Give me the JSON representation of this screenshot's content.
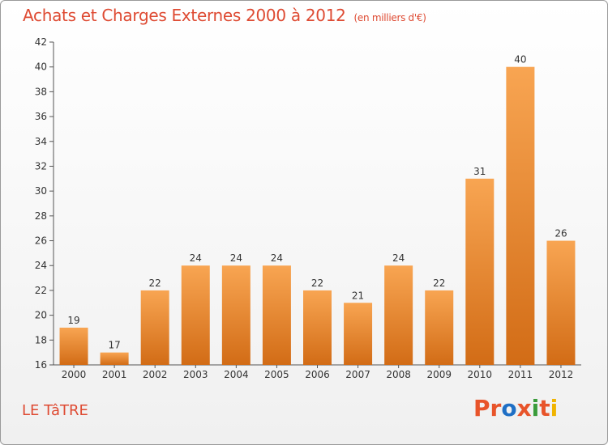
{
  "title": "Achats et Charges Externes 2000 à 2012",
  "unit": "(en milliers d'€)",
  "commune": "LE TâTRE",
  "logo": "Proxiti",
  "colors": {
    "title": "#de4a32",
    "bar_top": "#f8a552",
    "bar_bottom": "#d26c16",
    "logo_letters": [
      "#e8542a",
      "#e8542a",
      "#1f6fc5",
      "#e8542a",
      "#3a9b3a",
      "#e8542a",
      "#f0b400"
    ]
  },
  "chart_data": {
    "type": "bar",
    "categories": [
      "2000",
      "2001",
      "2002",
      "2003",
      "2004",
      "2005",
      "2006",
      "2007",
      "2008",
      "2009",
      "2010",
      "2011",
      "2012"
    ],
    "values": [
      19,
      17,
      22,
      24,
      24,
      24,
      22,
      21,
      24,
      22,
      31,
      40,
      26
    ],
    "value_labels": [
      "19",
      "17",
      "22",
      "24",
      "24",
      "24",
      "22",
      "21",
      "24",
      "22",
      "31",
      "40",
      "26"
    ],
    "ylim": [
      16,
      42
    ],
    "yticks": [
      16,
      18,
      20,
      22,
      24,
      26,
      28,
      30,
      32,
      34,
      36,
      38,
      40,
      42
    ],
    "grid": false,
    "xlabel": "",
    "ylabel": ""
  }
}
